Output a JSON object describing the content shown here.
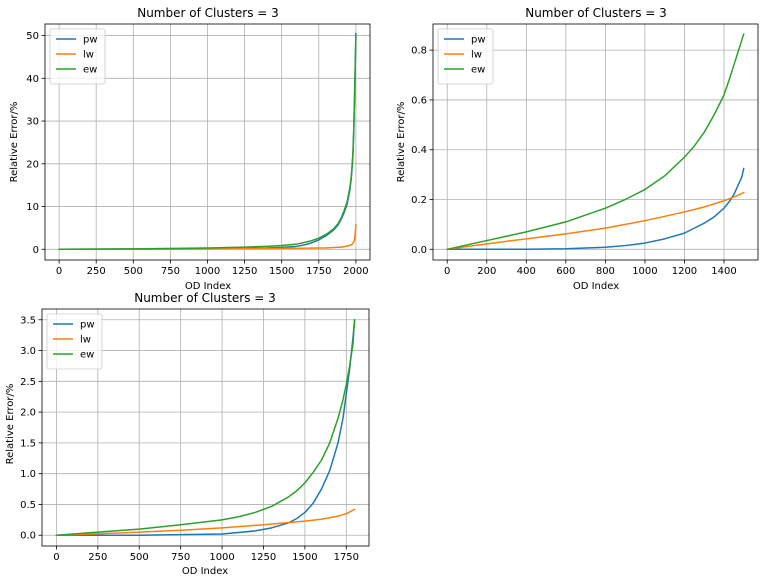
{
  "chart_data": [
    {
      "type": "line",
      "title": "Number of Clusters = 3",
      "xlabel": "OD Index",
      "ylabel": "Relative Error/%",
      "xlim": [
        -95,
        2095
      ],
      "ylim": [
        -2.5,
        52.7
      ],
      "xticks": [
        0,
        250,
        500,
        750,
        1000,
        1250,
        1500,
        1750,
        2000
      ],
      "yticks": [
        0,
        10,
        20,
        30,
        40,
        50
      ],
      "tick_format": "int",
      "grid": true,
      "legend": "top-left",
      "series": [
        {
          "name": "pw",
          "color": "#1f77b4",
          "x": [
            0,
            500,
            1000,
            1250,
            1400,
            1500,
            1600,
            1650,
            1700,
            1750,
            1800,
            1850,
            1880,
            1900,
            1920,
            1940,
            1960,
            1970,
            1980,
            1985,
            1990,
            1995,
            2000
          ],
          "y": [
            0,
            0.05,
            0.1,
            0.2,
            0.3,
            0.45,
            0.7,
            1.0,
            1.5,
            2.2,
            3.2,
            4.5,
            5.7,
            7.0,
            8.5,
            10.5,
            14.0,
            17.0,
            22.0,
            27.0,
            34.0,
            42.0,
            50.5
          ]
        },
        {
          "name": "lw",
          "color": "#ff7f0e",
          "x": [
            0,
            500,
            1000,
            1500,
            1800,
            1900,
            1950,
            1975,
            1990,
            1995,
            2000
          ],
          "y": [
            0,
            0.05,
            0.1,
            0.2,
            0.35,
            0.5,
            0.8,
            1.2,
            2.0,
            3.5,
            5.8
          ]
        },
        {
          "name": "ew",
          "color": "#2ca02c",
          "x": [
            0,
            500,
            1000,
            1250,
            1400,
            1500,
            1600,
            1650,
            1700,
            1750,
            1800,
            1850,
            1880,
            1900,
            1920,
            1940,
            1960,
            1970,
            1980,
            1985,
            1990,
            1995,
            2000
          ],
          "y": [
            0,
            0.1,
            0.3,
            0.5,
            0.7,
            0.9,
            1.2,
            1.6,
            2.0,
            2.6,
            3.5,
            4.8,
            6.0,
            7.3,
            9.0,
            11.0,
            14.5,
            17.5,
            22.5,
            27.5,
            34.0,
            42.0,
            50.0
          ]
        }
      ]
    },
    {
      "type": "line",
      "title": "Number of Clusters = 3",
      "xlabel": "OD Index",
      "ylabel": "Relative Error/%",
      "xlim": [
        -72,
        1572
      ],
      "ylim": [
        -0.043,
        0.905
      ],
      "xticks": [
        0,
        200,
        400,
        600,
        800,
        1000,
        1200,
        1400
      ],
      "yticks": [
        0.0,
        0.2,
        0.4,
        0.6,
        0.8
      ],
      "tick_format": "1dp",
      "grid": true,
      "legend": "top-left",
      "series": [
        {
          "name": "pw",
          "color": "#1f77b4",
          "x": [
            0,
            200,
            400,
            600,
            800,
            900,
            1000,
            1100,
            1200,
            1250,
            1300,
            1350,
            1400,
            1430,
            1450,
            1470,
            1490,
            1500
          ],
          "y": [
            0,
            0.0,
            0.0,
            0.002,
            0.008,
            0.015,
            0.025,
            0.042,
            0.065,
            0.085,
            0.105,
            0.13,
            0.165,
            0.195,
            0.22,
            0.255,
            0.29,
            0.325
          ]
        },
        {
          "name": "lw",
          "color": "#ff7f0e",
          "x": [
            0,
            200,
            400,
            600,
            800,
            1000,
            1200,
            1300,
            1400,
            1450,
            1500
          ],
          "y": [
            0,
            0.022,
            0.042,
            0.062,
            0.085,
            0.115,
            0.15,
            0.17,
            0.195,
            0.21,
            0.228
          ]
        },
        {
          "name": "ew",
          "color": "#2ca02c",
          "x": [
            0,
            200,
            400,
            600,
            800,
            900,
            1000,
            1100,
            1200,
            1250,
            1300,
            1350,
            1400,
            1430,
            1450,
            1470,
            1490,
            1500
          ],
          "y": [
            0,
            0.035,
            0.07,
            0.11,
            0.165,
            0.2,
            0.24,
            0.295,
            0.37,
            0.415,
            0.47,
            0.54,
            0.62,
            0.69,
            0.74,
            0.79,
            0.84,
            0.865
          ]
        }
      ]
    },
    {
      "type": "line",
      "title": "Number of Clusters = 3",
      "xlabel": "OD Index",
      "ylabel": "Relative Error/%",
      "xlim": [
        -87,
        1887
      ],
      "ylim": [
        -0.175,
        3.675
      ],
      "xticks": [
        0,
        250,
        500,
        750,
        1000,
        1250,
        1500,
        1750
      ],
      "yticks": [
        0.0,
        0.5,
        1.0,
        1.5,
        2.0,
        2.5,
        3.0,
        3.5
      ],
      "tick_format": "1dp",
      "grid": true,
      "legend": "top-left",
      "series": [
        {
          "name": "pw",
          "color": "#1f77b4",
          "x": [
            0,
            500,
            1000,
            1200,
            1300,
            1400,
            1450,
            1500,
            1550,
            1600,
            1650,
            1700,
            1730,
            1750,
            1770,
            1790,
            1800
          ],
          "y": [
            0,
            0.0,
            0.02,
            0.07,
            0.12,
            0.2,
            0.27,
            0.37,
            0.52,
            0.75,
            1.05,
            1.5,
            1.9,
            2.3,
            2.7,
            3.2,
            3.5
          ]
        },
        {
          "name": "lw",
          "color": "#ff7f0e",
          "x": [
            0,
            250,
            500,
            750,
            1000,
            1250,
            1500,
            1600,
            1700,
            1750,
            1800
          ],
          "y": [
            0,
            0.025,
            0.05,
            0.08,
            0.12,
            0.17,
            0.23,
            0.26,
            0.31,
            0.35,
            0.42
          ]
        },
        {
          "name": "ew",
          "color": "#2ca02c",
          "x": [
            0,
            250,
            500,
            750,
            1000,
            1100,
            1200,
            1300,
            1400,
            1450,
            1500,
            1550,
            1600,
            1650,
            1700,
            1730,
            1750,
            1770,
            1790,
            1800
          ],
          "y": [
            0,
            0.05,
            0.1,
            0.17,
            0.25,
            0.3,
            0.37,
            0.47,
            0.62,
            0.72,
            0.85,
            1.02,
            1.22,
            1.5,
            1.9,
            2.2,
            2.45,
            2.75,
            3.1,
            3.5
          ]
        }
      ]
    }
  ]
}
